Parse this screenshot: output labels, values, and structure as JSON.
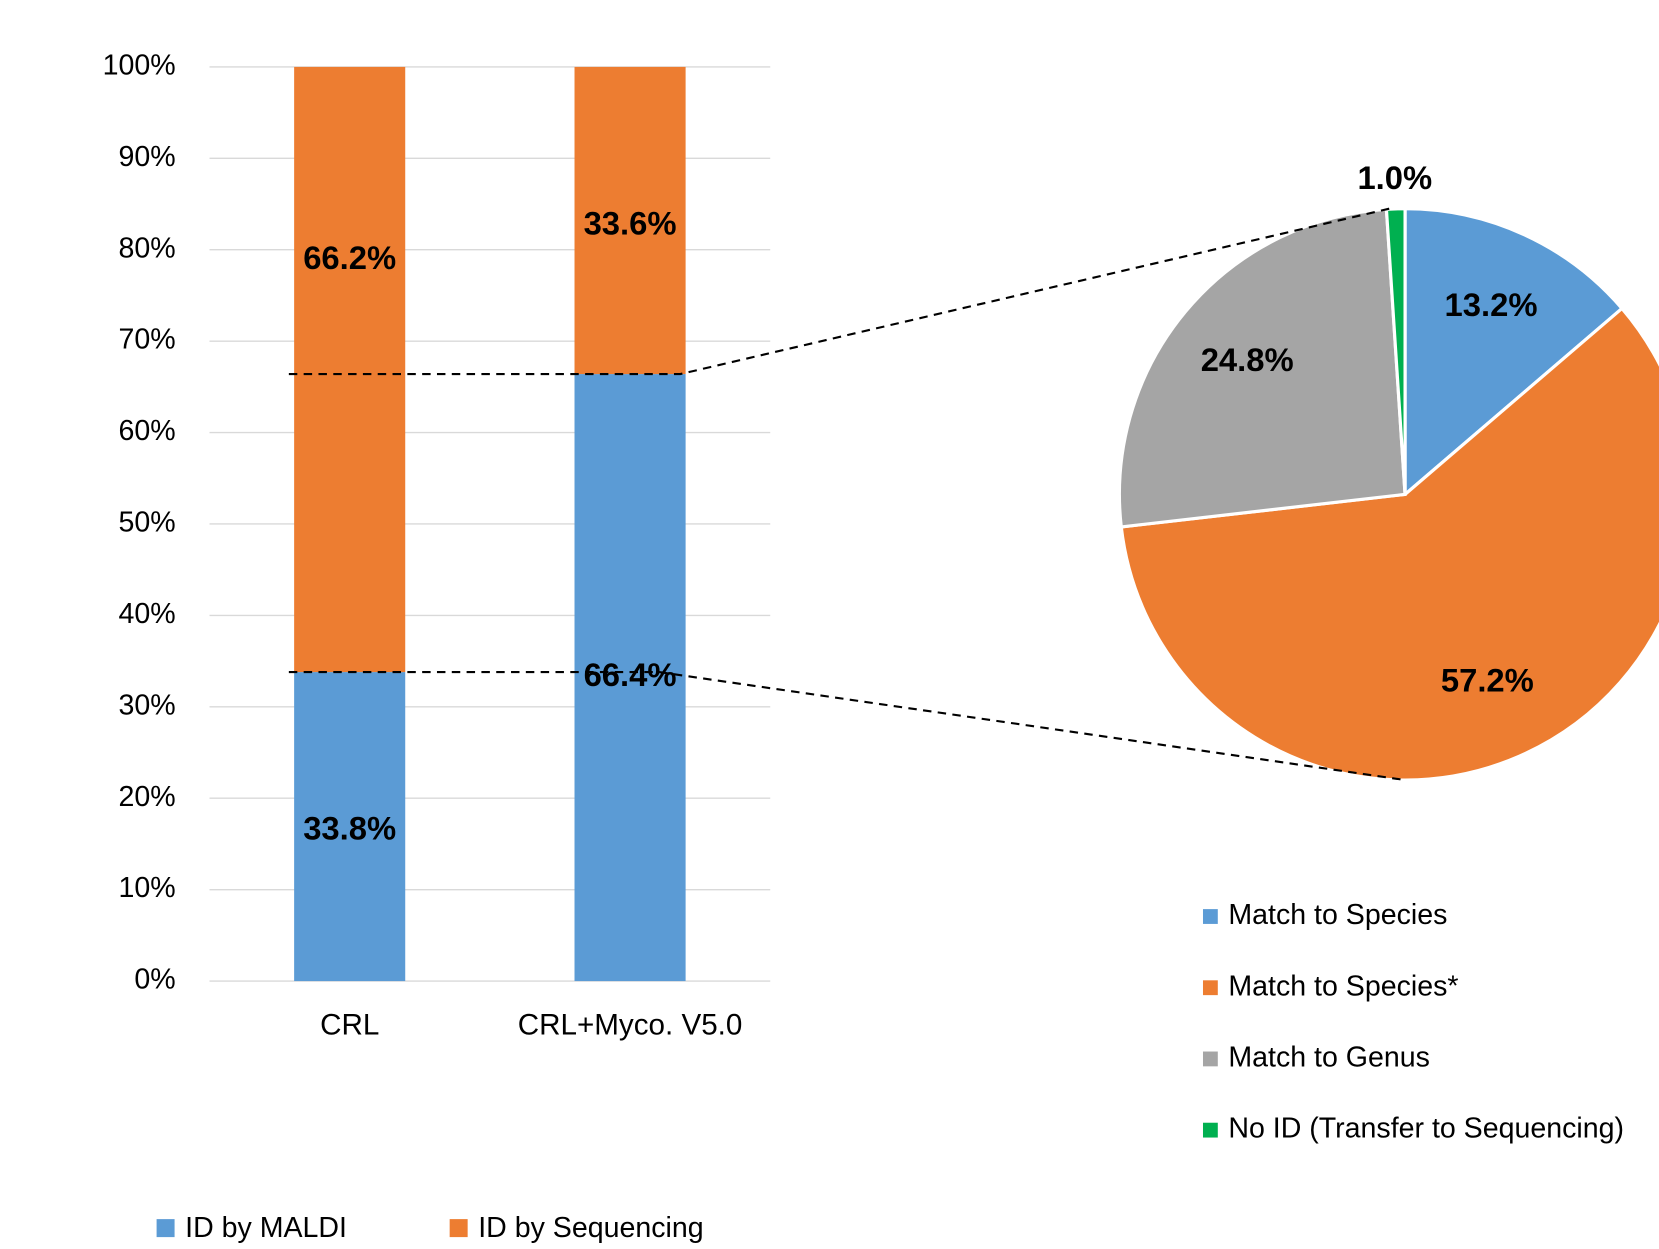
{
  "chart_data": [
    {
      "type": "stacked_bar",
      "categories": [
        "CRL",
        "CRL+Myco. V5.0"
      ],
      "series": [
        {
          "name": "ID by MALDI",
          "color": "#5b9bd5",
          "values": [
            33.8,
            66.4
          ],
          "value_labels": [
            "33.8%",
            "66.4%"
          ]
        },
        {
          "name": "ID by Sequencing",
          "color": "#ed7d31",
          "values": [
            66.2,
            33.6
          ],
          "value_labels": [
            "66.2%",
            "33.6%"
          ]
        }
      ],
      "ylim": [
        0,
        100
      ],
      "yticks": [
        {
          "value": 0,
          "label": "0%"
        },
        {
          "value": 10,
          "label": "10%"
        },
        {
          "value": 20,
          "label": "20%"
        },
        {
          "value": 30,
          "label": "30%"
        },
        {
          "value": 40,
          "label": "40%"
        },
        {
          "value": 50,
          "label": "50%"
        },
        {
          "value": 60,
          "label": "60%"
        },
        {
          "value": 70,
          "label": "70%"
        },
        {
          "value": 80,
          "label": "80%"
        },
        {
          "value": 90,
          "label": "90%"
        },
        {
          "value": 100,
          "label": "100%"
        }
      ],
      "grid": true,
      "legend": "bottom"
    },
    {
      "type": "pie",
      "categories": [
        "Match to Species",
        "Match to Species*",
        "Match to Genus",
        "No ID (Transfer to Sequencing)"
      ],
      "values": [
        13.2,
        57.2,
        24.8,
        1.0
      ],
      "value_labels": [
        "13.2%",
        "57.2%",
        "24.8%",
        "1.0%"
      ],
      "colors": [
        "#5b9bd5",
        "#ed7d31",
        "#a5a5a5",
        "#00b050"
      ],
      "legend": "bottom"
    }
  ]
}
